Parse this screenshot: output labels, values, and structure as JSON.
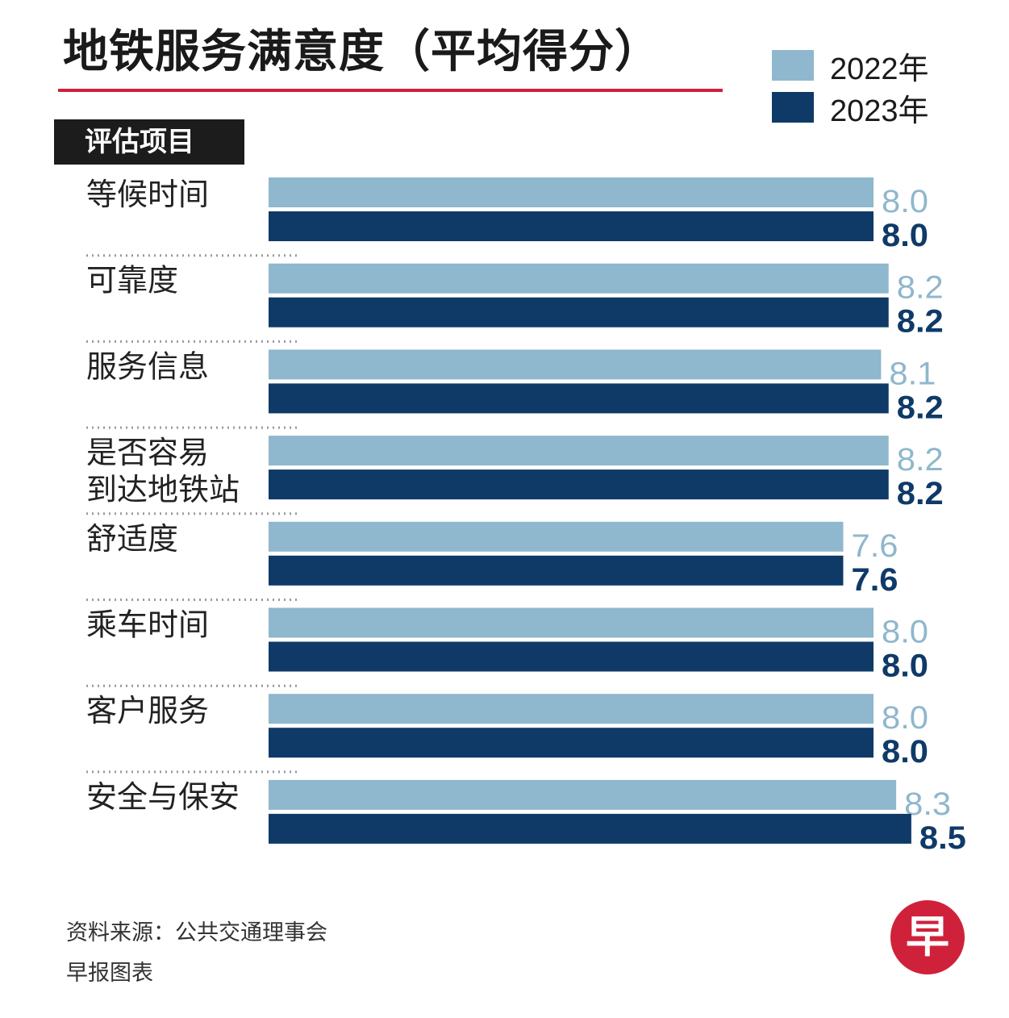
{
  "header": {
    "title": "地铁服务满意度（平均得分）",
    "category_heading": "评估项目"
  },
  "legend": {
    "items": [
      {
        "label": "2022年",
        "color": "#8fb7cd"
      },
      {
        "label": "2023年",
        "color": "#0f3a68"
      }
    ]
  },
  "chart_data": {
    "type": "bar",
    "orientation": "horizontal",
    "title": "地铁服务满意度（平均得分）",
    "categories": [
      [
        "等候时间"
      ],
      [
        "可靠度"
      ],
      [
        "服务信息"
      ],
      [
        "是否容易",
        "到达地铁站"
      ],
      [
        "舒适度"
      ],
      [
        "乘车时间"
      ],
      [
        "客户服务"
      ],
      [
        "安全与保安"
      ]
    ],
    "series": [
      {
        "name": "2022年",
        "color": "#8fb7cd",
        "label_color": "#8fb7cd",
        "values": [
          8.0,
          8.2,
          8.1,
          8.2,
          7.6,
          8.0,
          8.0,
          8.3
        ]
      },
      {
        "name": "2023年",
        "color": "#0f3a68",
        "label_color": "#0f3a68",
        "values": [
          8.0,
          8.2,
          8.2,
          8.2,
          7.6,
          8.0,
          8.0,
          8.5
        ]
      }
    ],
    "value_labels": [
      [
        "8.0",
        "8.2",
        "8.1",
        "8.2",
        "7.6",
        "8.0",
        "8.0",
        "8.3"
      ],
      [
        "8.0",
        "8.2",
        "8.2",
        "8.2",
        "7.6",
        "8.0",
        "8.0",
        "8.5"
      ]
    ],
    "grid": false,
    "legend_position": "top-right"
  },
  "footer": {
    "source": "资料来源：公共交通理事会",
    "credit": "早报图表"
  },
  "logo": {
    "char": "早",
    "color": "#d0213a"
  }
}
